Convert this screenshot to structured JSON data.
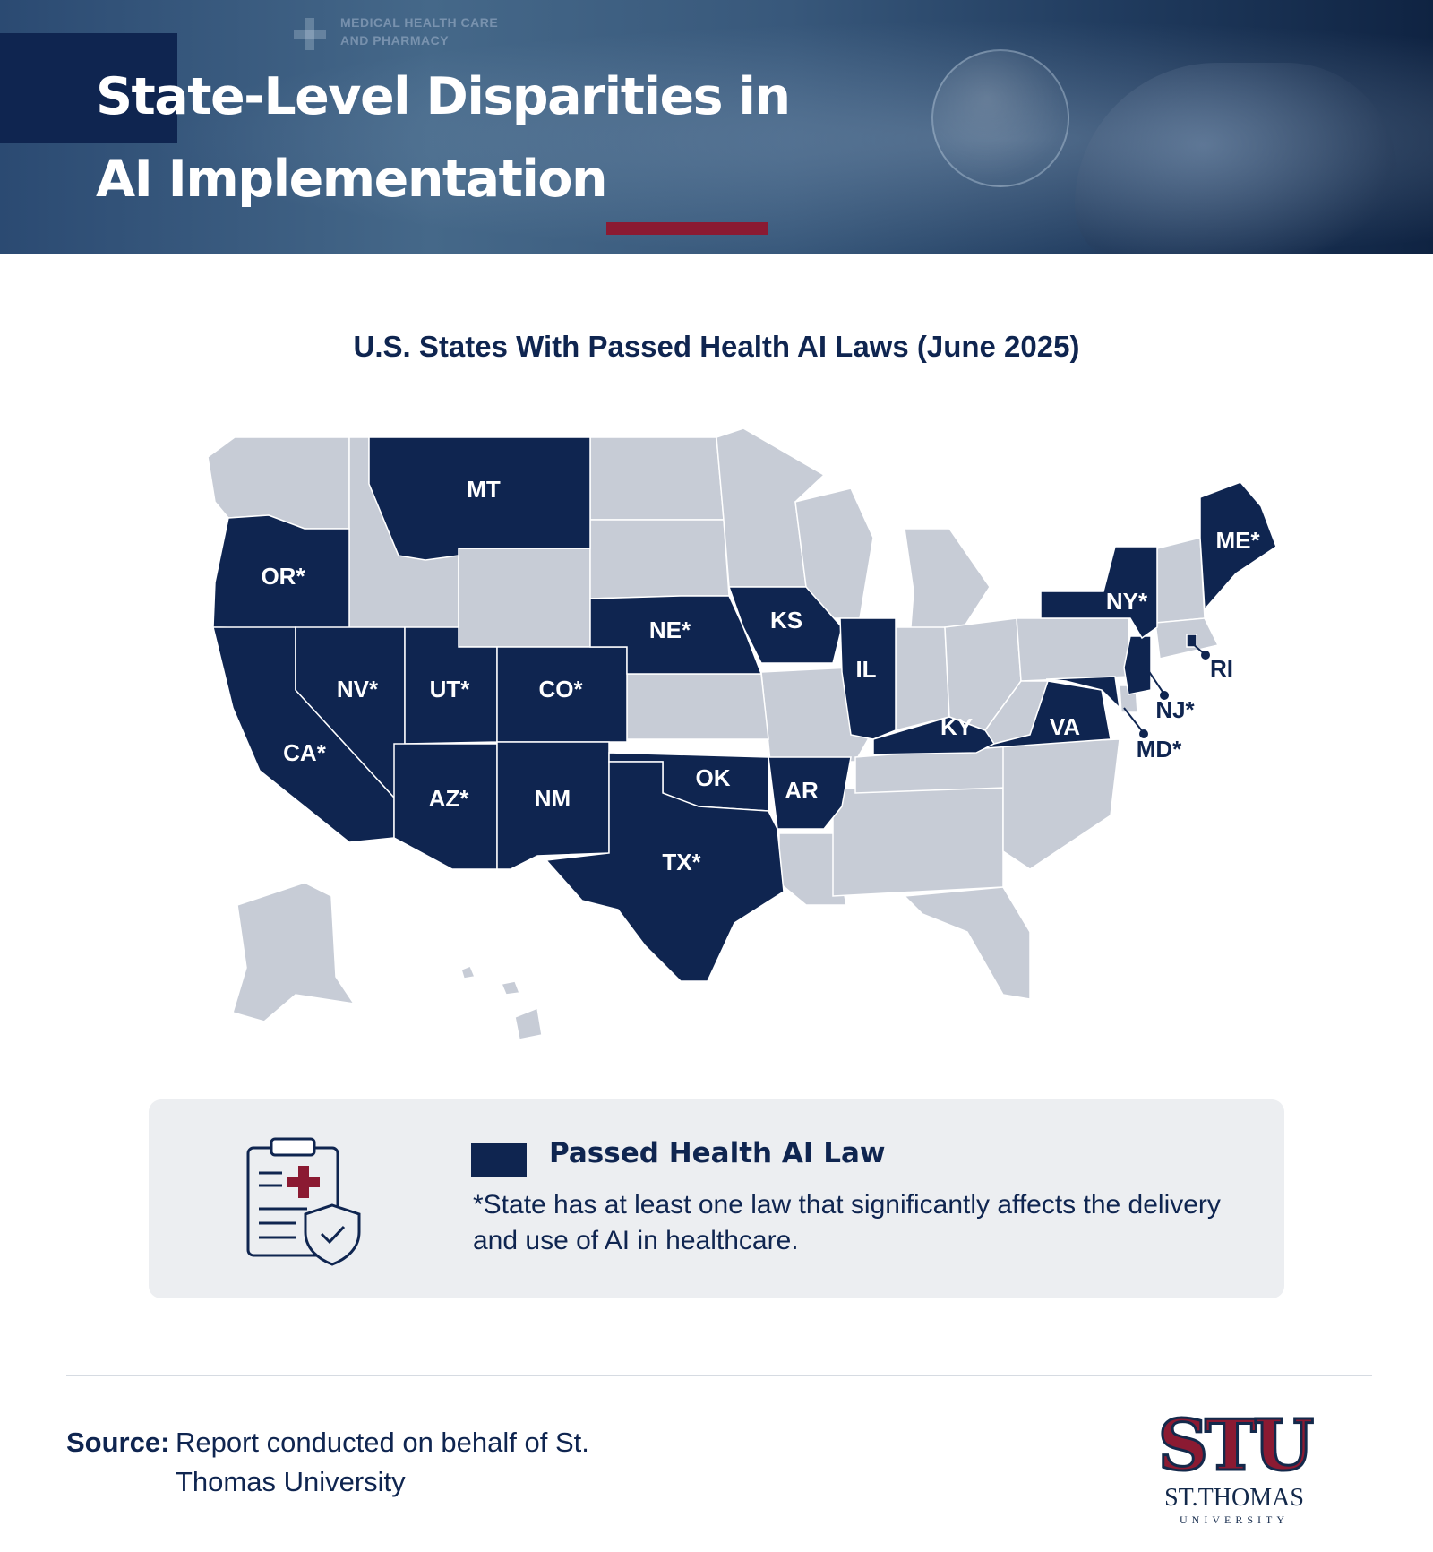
{
  "header": {
    "title": "State-Level Disparities in AI Implementation",
    "background_text": "MEDICAL HEALTH CARE AND PHARMACY"
  },
  "map": {
    "title": "U.S. States With Passed Health AI Laws (June 2025)",
    "highlight_color": "#0f2550",
    "base_color": "#c7ccd6",
    "states_passed": [
      {
        "code": "MT",
        "label": "MT"
      },
      {
        "code": "OR",
        "label": "OR*"
      },
      {
        "code": "NE",
        "label": "NE*"
      },
      {
        "code": "KS",
        "label": "KS"
      },
      {
        "code": "IL",
        "label": "IL"
      },
      {
        "code": "NY",
        "label": "NY*"
      },
      {
        "code": "ME",
        "label": "ME*"
      },
      {
        "code": "RI",
        "label": "RI"
      },
      {
        "code": "NJ",
        "label": "NJ*"
      },
      {
        "code": "MD",
        "label": "MD*"
      },
      {
        "code": "VA",
        "label": "VA"
      },
      {
        "code": "KY",
        "label": "KY"
      },
      {
        "code": "NV",
        "label": "NV*"
      },
      {
        "code": "UT",
        "label": "UT*"
      },
      {
        "code": "CO",
        "label": "CO*"
      },
      {
        "code": "CA",
        "label": "CA*"
      },
      {
        "code": "AZ",
        "label": "AZ*"
      },
      {
        "code": "NM",
        "label": "NM"
      },
      {
        "code": "OK",
        "label": "OK"
      },
      {
        "code": "AR",
        "label": "AR"
      },
      {
        "code": "TX",
        "label": "TX*"
      }
    ]
  },
  "legend": {
    "key_label": "Passed Health AI Law",
    "note": "*State has at least one law that significantly affects the delivery and use of AI in healthcare.",
    "icon": "clipboard-medical-shield-icon"
  },
  "footer": {
    "source_label": "Source:",
    "source_text": "Report conducted on behalf of St. Thomas University",
    "logo": {
      "monogram": "STU",
      "name": "ST.THOMAS",
      "subtitle": "UNIVERSITY"
    },
    "logo_colors": {
      "navy": "#13294b",
      "red": "#8b1a32"
    }
  }
}
